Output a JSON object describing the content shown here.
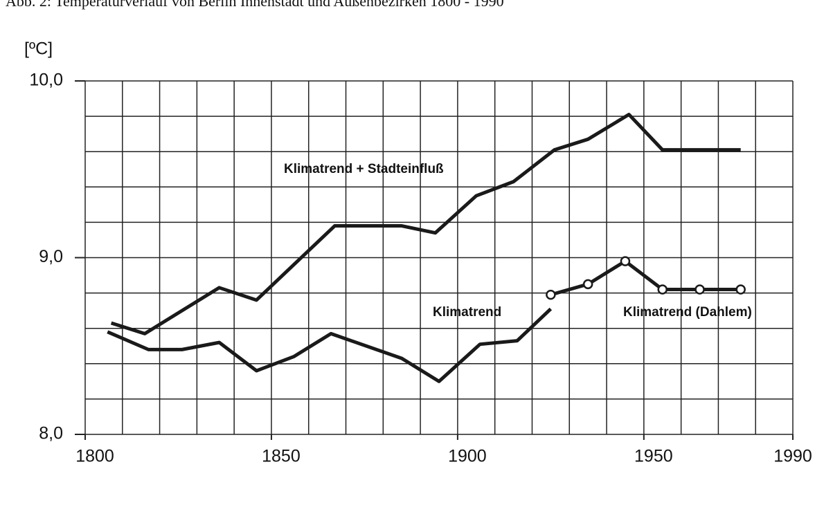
{
  "chart_data": {
    "type": "line",
    "title": "Abb. 2: Temperaturverlauf von Berlin Innenstadt und Außenbezirken 1800 - 1990",
    "y_label": "[ºC]",
    "xlim": [
      1800,
      1990
    ],
    "xticks": [
      1800,
      1850,
      1900,
      1950,
      1990
    ],
    "xgrid": [
      1800,
      1810,
      1820,
      1830,
      1840,
      1850,
      1860,
      1870,
      1880,
      1890,
      1900,
      1910,
      1920,
      1930,
      1940,
      1950,
      1960,
      1970,
      1980,
      1990
    ],
    "ylim": [
      8.0,
      10.0
    ],
    "yticks": [
      {
        "value": 8.0,
        "label": "8,0"
      },
      {
        "value": 9.0,
        "label": "9,0"
      },
      {
        "value": 10.0,
        "label": "10,0"
      }
    ],
    "ygrid": [
      8.0,
      8.2,
      8.4,
      8.6,
      8.8,
      9.0,
      9.2,
      9.4,
      9.6,
      9.8,
      10.0
    ],
    "grid": true,
    "series": [
      {
        "name": "Klimatrend + Stadteinfluß",
        "color": "#1a1a1a",
        "markers": false,
        "x": [
          1807,
          1816,
          1836,
          1846,
          1867,
          1885,
          1894,
          1905,
          1915,
          1926,
          1935,
          1946,
          1955,
          1976
        ],
        "values": [
          8.63,
          8.57,
          8.83,
          8.76,
          9.18,
          9.18,
          9.14,
          9.35,
          9.43,
          9.61,
          9.67,
          9.81,
          9.61,
          9.61
        ]
      },
      {
        "name": "Klimatrend",
        "color": "#1a1a1a",
        "markers": false,
        "x": [
          1806,
          1817,
          1826,
          1836,
          1846,
          1856,
          1866,
          1885,
          1895,
          1906,
          1916,
          1925
        ],
        "values": [
          8.58,
          8.48,
          8.48,
          8.52,
          8.36,
          8.44,
          8.57,
          8.43,
          8.3,
          8.51,
          8.53,
          8.71
        ]
      },
      {
        "name": "Klimatrend (Dahlem)",
        "color": "#1a1a1a",
        "markers": true,
        "x": [
          1925,
          1935,
          1945,
          1955,
          1965,
          1976
        ],
        "values": [
          8.79,
          8.85,
          8.98,
          8.82,
          8.82,
          8.82
        ]
      }
    ]
  }
}
